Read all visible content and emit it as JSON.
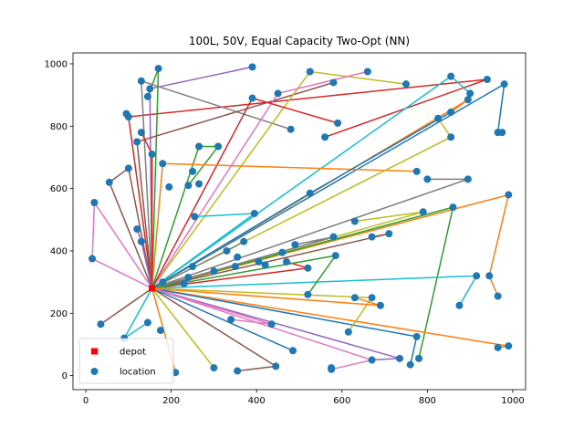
{
  "chart_data": {
    "type": "scatter",
    "title": "100L, 50V, Equal Capacity Two-Opt (NN)",
    "xlim": [
      -30,
      1030
    ],
    "ylim": [
      -45,
      1035
    ],
    "x_ticks": [
      0,
      200,
      400,
      600,
      800,
      1000
    ],
    "y_ticks": [
      0,
      200,
      400,
      600,
      800,
      1000
    ],
    "grid": false,
    "legend": {
      "placement": "lower-left",
      "entries": [
        {
          "label": "depot",
          "marker": "square",
          "color": "#ff0000"
        },
        {
          "label": "location",
          "marker": "circle",
          "color": "#1f77b4"
        }
      ]
    },
    "depot": {
      "x": 155,
      "y": 280
    },
    "locations": [
      [
        170,
        985
      ],
      [
        390,
        990
      ],
      [
        130,
        945
      ],
      [
        150,
        920
      ],
      [
        145,
        895
      ],
      [
        95,
        840
      ],
      [
        100,
        830
      ],
      [
        130,
        780
      ],
      [
        120,
        750
      ],
      [
        155,
        710
      ],
      [
        100,
        665
      ],
      [
        55,
        620
      ],
      [
        180,
        680
      ],
      [
        195,
        605
      ],
      [
        240,
        610
      ],
      [
        250,
        655
      ],
      [
        265,
        615
      ],
      [
        265,
        735
      ],
      [
        310,
        735
      ],
      [
        255,
        510
      ],
      [
        20,
        555
      ],
      [
        15,
        375
      ],
      [
        120,
        470
      ],
      [
        130,
        430
      ],
      [
        35,
        165
      ],
      [
        90,
        120
      ],
      [
        145,
        170
      ],
      [
        175,
        145
      ],
      [
        210,
        10
      ],
      [
        300,
        25
      ],
      [
        355,
        15
      ],
      [
        445,
        30
      ],
      [
        485,
        80
      ],
      [
        575,
        20
      ],
      [
        575,
        25
      ],
      [
        670,
        50
      ],
      [
        735,
        55
      ],
      [
        760,
        35
      ],
      [
        780,
        55
      ],
      [
        775,
        125
      ],
      [
        965,
        90
      ],
      [
        990,
        95
      ],
      [
        965,
        255
      ],
      [
        945,
        320
      ],
      [
        915,
        320
      ],
      [
        875,
        225
      ],
      [
        690,
        225
      ],
      [
        670,
        250
      ],
      [
        630,
        250
      ],
      [
        615,
        140
      ],
      [
        520,
        260
      ],
      [
        585,
        385
      ],
      [
        520,
        345
      ],
      [
        490,
        420
      ],
      [
        580,
        445
      ],
      [
        670,
        445
      ],
      [
        710,
        455
      ],
      [
        630,
        495
      ],
      [
        790,
        525
      ],
      [
        860,
        540
      ],
      [
        395,
        520
      ],
      [
        330,
        400
      ],
      [
        355,
        380
      ],
      [
        250,
        350
      ],
      [
        230,
        295
      ],
      [
        435,
        165
      ],
      [
        340,
        180
      ],
      [
        470,
        365
      ],
      [
        525,
        585
      ],
      [
        560,
        765
      ],
      [
        480,
        790
      ],
      [
        590,
        810
      ],
      [
        580,
        940
      ],
      [
        525,
        975
      ],
      [
        450,
        905
      ],
      [
        390,
        890
      ],
      [
        660,
        975
      ],
      [
        750,
        935
      ],
      [
        855,
        960
      ],
      [
        900,
        905
      ],
      [
        940,
        950
      ],
      [
        980,
        935
      ],
      [
        975,
        780
      ],
      [
        965,
        780
      ],
      [
        990,
        580
      ],
      [
        895,
        630
      ],
      [
        855,
        765
      ],
      [
        825,
        825
      ],
      [
        855,
        845
      ],
      [
        895,
        885
      ],
      [
        775,
        655
      ],
      [
        800,
        630
      ],
      [
        405,
        365
      ],
      [
        420,
        355
      ],
      [
        350,
        350
      ],
      [
        300,
        335
      ],
      [
        240,
        315
      ],
      [
        180,
        300
      ],
      [
        460,
        395
      ],
      [
        370,
        430
      ]
    ],
    "routes": [
      {
        "color": "#d62728",
        "points": [
          [
            155,
            280
          ],
          [
            100,
            830
          ],
          [
            940,
            950
          ],
          [
            560,
            765
          ]
        ]
      },
      {
        "color": "#9467bd",
        "points": [
          [
            155,
            280
          ],
          [
            150,
            920
          ],
          [
            390,
            990
          ]
        ]
      },
      {
        "color": "#2ca02c",
        "points": [
          [
            155,
            280
          ],
          [
            170,
            985
          ],
          [
            145,
            895
          ]
        ]
      },
      {
        "color": "#7f7f7f",
        "points": [
          [
            155,
            280
          ],
          [
            130,
            945
          ],
          [
            480,
            790
          ]
        ]
      },
      {
        "color": "#8c564b",
        "points": [
          [
            155,
            280
          ],
          [
            120,
            750
          ],
          [
            580,
            940
          ]
        ]
      },
      {
        "color": "#bcbd22",
        "points": [
          [
            155,
            280
          ],
          [
            525,
            975
          ],
          [
            750,
            935
          ]
        ]
      },
      {
        "color": "#e377c2",
        "points": [
          [
            155,
            280
          ],
          [
            450,
            905
          ],
          [
            660,
            975
          ]
        ]
      },
      {
        "color": "#17becf",
        "points": [
          [
            155,
            280
          ],
          [
            855,
            960
          ],
          [
            900,
            905
          ]
        ]
      },
      {
        "color": "#1f77b4",
        "points": [
          [
            155,
            280
          ],
          [
            980,
            935
          ],
          [
            965,
            780
          ],
          [
            975,
            780
          ]
        ]
      },
      {
        "color": "#ff7f0e",
        "points": [
          [
            155,
            280
          ],
          [
            895,
            885
          ],
          [
            855,
            845
          ]
        ]
      },
      {
        "color": "#d62728",
        "points": [
          [
            155,
            280
          ],
          [
            390,
            890
          ],
          [
            590,
            810
          ]
        ]
      },
      {
        "color": "#2ca02c",
        "points": [
          [
            155,
            280
          ],
          [
            265,
            735
          ],
          [
            310,
            735
          ],
          [
            240,
            610
          ]
        ]
      },
      {
        "color": "#ff7f0e",
        "points": [
          [
            155,
            280
          ],
          [
            180,
            680
          ],
          [
            775,
            655
          ]
        ]
      },
      {
        "color": "#7f7f7f",
        "points": [
          [
            155,
            280
          ],
          [
            895,
            630
          ],
          [
            800,
            630
          ]
        ]
      },
      {
        "color": "#8c564b",
        "points": [
          [
            155,
            280
          ],
          [
            100,
            665
          ],
          [
            55,
            620
          ],
          [
            155,
            280
          ]
        ]
      },
      {
        "color": "#e377c2",
        "points": [
          [
            155,
            280
          ],
          [
            20,
            555
          ],
          [
            15,
            375
          ],
          [
            155,
            280
          ]
        ]
      },
      {
        "color": "#bcbd22",
        "points": [
          [
            155,
            280
          ],
          [
            855,
            765
          ],
          [
            825,
            825
          ]
        ]
      },
      {
        "color": "#17becf",
        "points": [
          [
            155,
            280
          ],
          [
            395,
            520
          ],
          [
            255,
            510
          ]
        ]
      },
      {
        "color": "#ff7f0e",
        "points": [
          [
            155,
            280
          ],
          [
            990,
            580
          ],
          [
            945,
            320
          ],
          [
            965,
            255
          ]
        ]
      },
      {
        "color": "#2ca02c",
        "points": [
          [
            155,
            280
          ],
          [
            860,
            540
          ],
          [
            780,
            55
          ]
        ]
      },
      {
        "color": "#8c564b",
        "points": [
          [
            155,
            280
          ],
          [
            710,
            455
          ],
          [
            670,
            445
          ]
        ]
      },
      {
        "color": "#bcbd22",
        "points": [
          [
            155,
            280
          ],
          [
            790,
            525
          ],
          [
            630,
            495
          ]
        ]
      },
      {
        "color": "#d62728",
        "points": [
          [
            155,
            280
          ],
          [
            520,
            345
          ],
          [
            470,
            365
          ]
        ]
      },
      {
        "color": "#7f7f7f",
        "points": [
          [
            155,
            280
          ],
          [
            580,
            445
          ],
          [
            490,
            420
          ]
        ]
      },
      {
        "color": "#17becf",
        "points": [
          [
            155,
            280
          ],
          [
            915,
            320
          ],
          [
            875,
            225
          ]
        ]
      },
      {
        "color": "#ff7f0e",
        "points": [
          [
            155,
            280
          ],
          [
            990,
            95
          ],
          [
            965,
            90
          ]
        ]
      },
      {
        "color": "#1f77b4",
        "points": [
          [
            155,
            280
          ],
          [
            775,
            125
          ],
          [
            760,
            35
          ]
        ]
      },
      {
        "color": "#2ca02c",
        "points": [
          [
            155,
            280
          ],
          [
            585,
            385
          ],
          [
            520,
            260
          ]
        ]
      },
      {
        "color": "#bcbd22",
        "points": [
          [
            155,
            280
          ],
          [
            670,
            250
          ],
          [
            615,
            140
          ]
        ]
      },
      {
        "color": "#e377c2",
        "points": [
          [
            155,
            280
          ],
          [
            670,
            50
          ],
          [
            575,
            20
          ]
        ]
      },
      {
        "color": "#9467bd",
        "points": [
          [
            155,
            280
          ],
          [
            735,
            55
          ],
          [
            670,
            50
          ]
        ]
      },
      {
        "color": "#1f77b4",
        "points": [
          [
            155,
            280
          ],
          [
            485,
            80
          ]
        ]
      },
      {
        "color": "#e377c2",
        "points": [
          [
            155,
            280
          ],
          [
            435,
            165
          ],
          [
            340,
            180
          ]
        ]
      },
      {
        "color": "#8c564b",
        "points": [
          [
            155,
            280
          ],
          [
            445,
            30
          ],
          [
            355,
            15
          ]
        ]
      },
      {
        "color": "#bcbd22",
        "points": [
          [
            155,
            280
          ],
          [
            300,
            25
          ]
        ]
      },
      {
        "color": "#ff7f0e",
        "points": [
          [
            155,
            280
          ],
          [
            210,
            10
          ]
        ]
      },
      {
        "color": "#17becf",
        "points": [
          [
            155,
            280
          ],
          [
            90,
            120
          ],
          [
            145,
            170
          ]
        ]
      },
      {
        "color": "#8c564b",
        "points": [
          [
            155,
            280
          ],
          [
            35,
            165
          ]
        ]
      },
      {
        "color": "#9467bd",
        "points": [
          [
            155,
            280
          ],
          [
            130,
            430
          ],
          [
            120,
            470
          ]
        ]
      },
      {
        "color": "#7f7f7f",
        "points": [
          [
            155,
            280
          ],
          [
            330,
            400
          ],
          [
            370,
            430
          ]
        ]
      },
      {
        "color": "#1f77b4",
        "points": [
          [
            155,
            280
          ],
          [
            525,
            585
          ],
          [
            855,
            845
          ]
        ]
      },
      {
        "color": "#ff7f0e",
        "points": [
          [
            155,
            280
          ],
          [
            690,
            225
          ],
          [
            630,
            250
          ]
        ]
      },
      {
        "color": "#d62728",
        "points": [
          [
            155,
            280
          ],
          [
            155,
            710
          ],
          [
            130,
            780
          ]
        ]
      }
    ]
  }
}
